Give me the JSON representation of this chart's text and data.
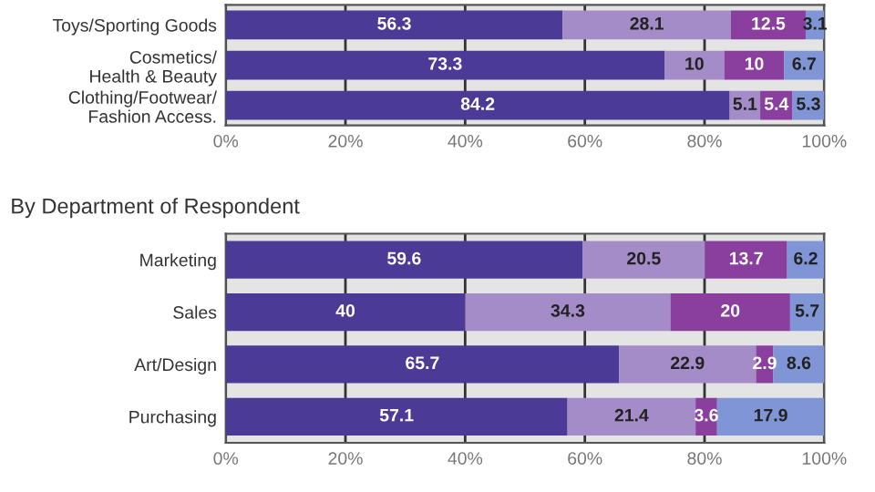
{
  "chart_data": [
    {
      "type": "bar",
      "orientation": "horizontal",
      "stacked": true,
      "data_labels": true,
      "grid": "x",
      "categories": [
        "Toys/Sporting Goods",
        "Cosmetics/\nHealth & Beauty",
        "Clothing/Footwear/\nFashion Access."
      ],
      "series": [
        {
          "color": "#4b3a96",
          "values": [
            56.3,
            73.3,
            84.2
          ]
        },
        {
          "color": "#a38cc7",
          "values": [
            28.1,
            10,
            5.1
          ]
        },
        {
          "color": "#8a3f9e",
          "values": [
            12.5,
            10,
            5.4
          ]
        },
        {
          "color": "#7f95d6",
          "values": [
            3.1,
            6.7,
            5.3
          ]
        }
      ],
      "xlim": [
        0,
        100
      ],
      "xticks": [
        {
          "value": 0,
          "label": "0%"
        },
        {
          "value": 20,
          "label": "20%"
        },
        {
          "value": 40,
          "label": "40%"
        },
        {
          "value": 60,
          "label": "60%"
        },
        {
          "value": 80,
          "label": "80%"
        },
        {
          "value": 100,
          "label": "100%"
        }
      ]
    },
    {
      "type": "bar",
      "orientation": "horizontal",
      "stacked": true,
      "data_labels": true,
      "grid": "x",
      "title": "By Department of Respondent",
      "categories": [
        "Marketing",
        "Sales",
        "Art/Design",
        "Purchasing"
      ],
      "series": [
        {
          "color": "#4b3a96",
          "values": [
            59.6,
            40,
            65.7,
            57.1
          ]
        },
        {
          "color": "#a38cc7",
          "values": [
            20.5,
            34.3,
            22.9,
            21.4
          ]
        },
        {
          "color": "#8a3f9e",
          "values": [
            13.7,
            20,
            2.9,
            3.6
          ]
        },
        {
          "color": "#7f95d6",
          "values": [
            6.2,
            5.7,
            8.6,
            17.9
          ]
        }
      ],
      "xlim": [
        0,
        100
      ],
      "xticks": [
        {
          "value": 0,
          "label": "0%"
        },
        {
          "value": 20,
          "label": "20%"
        },
        {
          "value": 40,
          "label": "40%"
        },
        {
          "value": 60,
          "label": "60%"
        },
        {
          "value": 80,
          "label": "80%"
        },
        {
          "value": 100,
          "label": "100%"
        }
      ]
    }
  ]
}
